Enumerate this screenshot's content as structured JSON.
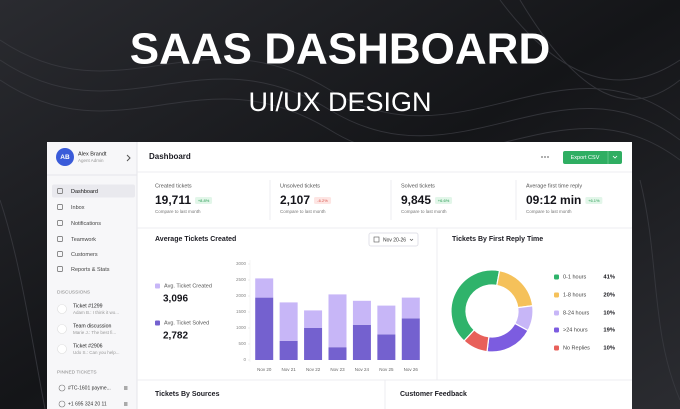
{
  "banner": {
    "title": "SAAS DASHBOARD",
    "subtitle": "UI/UX DESIGN"
  },
  "sidebar": {
    "user": {
      "initials": "AB",
      "name": "Alex Brandt",
      "role": "Agent Admin"
    },
    "nav": [
      "Dashboard",
      "Inbox",
      "Notifications",
      "Teamwork",
      "Customers",
      "Reports & Stats"
    ],
    "discussions_label": "DISCUSSIONS",
    "discussions": [
      {
        "title": "Ticket #1299",
        "preview": "Adam B.: I think it wo..."
      },
      {
        "title": "Team discussion",
        "preview": "Marie J.: The best fi..."
      },
      {
        "title": "Ticket #2906",
        "preview": "Udo S.: Can you help..."
      }
    ],
    "pinned_label": "PINNED TICKETS",
    "pinned": [
      "#TC-1601 payme...",
      "+1 695 324 20 11"
    ]
  },
  "header": {
    "title": "Dashboard",
    "button": "Export CSV"
  },
  "stats": [
    {
      "label": "Created tickets",
      "value": "19,711",
      "change": "+8.8%",
      "trend": "up",
      "note": "Compare to last month"
    },
    {
      "label": "Unsolved tickets",
      "value": "2,107",
      "change": "-6.2%",
      "trend": "down",
      "note": "Compare to last month"
    },
    {
      "label": "Solved tickets",
      "value": "9,845",
      "change": "+6.6%",
      "trend": "up",
      "note": "Compare to last month"
    },
    {
      "label": "Average first time reply",
      "value": "09:12 min",
      "change": "+6.1%",
      "trend": "up",
      "note": "Compare to last month"
    }
  ],
  "chart_data": [
    {
      "type": "bar",
      "stacked": true,
      "title": "Average Tickets Created",
      "date_range": "Nov 20-26",
      "categories": [
        "Nov 20",
        "Nov 21",
        "Nov 22",
        "Nov 23",
        "Nov 24",
        "Nov 25",
        "Nov 26"
      ],
      "series": [
        {
          "name": "Avg. Ticket Created",
          "summary": "3,096",
          "color": "#c7b6f7",
          "values": [
            600,
            1200,
            550,
            1650,
            750,
            900,
            650
          ]
        },
        {
          "name": "Avg. Ticket Solved",
          "summary": "2,782",
          "color": "#7461cf",
          "values": [
            1950,
            600,
            1000,
            400,
            1100,
            800,
            1300
          ]
        }
      ],
      "ylim": [
        0,
        3000
      ],
      "yticks": [
        0,
        500,
        1000,
        1500,
        2000,
        2500,
        3000
      ],
      "grid": false
    },
    {
      "type": "pie",
      "title": "Tickets By First Reply Time",
      "categories": [
        "0-1 hours",
        "1-8 hours",
        "8-24 hours",
        ">24 hours",
        "No Replies"
      ],
      "values": [
        41,
        20,
        10,
        19,
        10
      ],
      "value_labels": [
        "41%",
        "20%",
        "10%",
        "19%",
        "10%"
      ],
      "colors": [
        "#2fb36b",
        "#f5c15a",
        "#c7b6f7",
        "#7c5ce0",
        "#e8605a"
      ]
    }
  ],
  "sections": [
    "Tickets By Sources",
    "Customer Feedback"
  ]
}
